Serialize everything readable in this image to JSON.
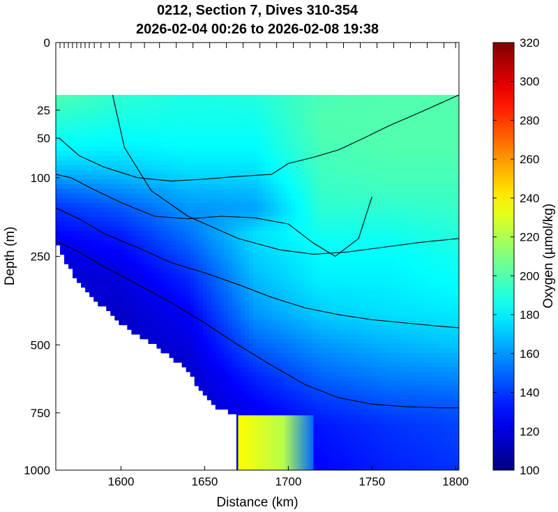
{
  "chart_data": {
    "type": "heatmap",
    "title_line1": "0212, Section 7, Dives 310-354",
    "title_line2": "2026-02-04 00:26 to 2026-02-08 19:38",
    "xlabel": "Distance (km)",
    "ylabel": "Depth (m)",
    "colorbar_label": "Oxygen (µmol/kg)",
    "x_range": [
      1561,
      1802
    ],
    "x_ticks": [
      1600,
      1650,
      1700,
      1750,
      1800
    ],
    "y_scale": "sqrt",
    "y_range": [
      0,
      1000
    ],
    "y_ticks": [
      0,
      25,
      50,
      100,
      250,
      500,
      750,
      1000
    ],
    "c_range": [
      100,
      320
    ],
    "c_ticks": [
      100,
      120,
      140,
      160,
      180,
      200,
      220,
      240,
      260,
      280,
      300,
      320
    ],
    "colormap": "jet",
    "data_top_depth": 15,
    "dive_ticks_km": [
      1561,
      1563.5,
      1566,
      1568.5,
      1571,
      1573.5,
      1576,
      1578.5,
      1581,
      1584,
      1588,
      1593,
      1599,
      1606,
      1614,
      1623,
      1633,
      1643,
      1653,
      1663,
      1673,
      1683,
      1693,
      1703,
      1713,
      1723,
      1733,
      1743,
      1753,
      1763,
      1773,
      1783,
      1793,
      1800
    ],
    "bottom_profile": {
      "x": [
        1561,
        1567,
        1572,
        1580,
        1590,
        1600,
        1612,
        1625,
        1638,
        1648,
        1658,
        1670,
        1670,
        1802
      ],
      "depth": [
        210,
        265,
        300,
        340,
        385,
        430,
        475,
        520,
        575,
        660,
        730,
        760,
        1000,
        1000
      ]
    },
    "deep_anomaly": {
      "x_start": 1670,
      "x_end": 1715,
      "depth_top": 760,
      "depth_bottom": 1000
    },
    "field_profiles": [
      {
        "x": 1561,
        "depth": [
          15,
          30,
          60,
          90,
          120,
          150,
          200,
          250,
          300,
          400,
          500,
          600,
          700,
          800,
          1000
        ],
        "oxygen": [
          200,
          192,
          182,
          168,
          150,
          138,
          128,
          120,
          118,
          115,
          113,
          112,
          112,
          112,
          112
        ]
      },
      {
        "x": 1600,
        "depth": [
          15,
          30,
          60,
          90,
          120,
          150,
          200,
          250,
          300,
          400,
          500,
          600,
          700,
          800,
          1000
        ],
        "oxygen": [
          192,
          188,
          180,
          170,
          158,
          146,
          134,
          126,
          120,
          116,
          114,
          112,
          112,
          112,
          112
        ]
      },
      {
        "x": 1640,
        "depth": [
          15,
          30,
          60,
          90,
          120,
          150,
          200,
          250,
          300,
          400,
          500,
          600,
          700,
          800,
          1000
        ],
        "oxygen": [
          188,
          186,
          182,
          176,
          166,
          160,
          152,
          144,
          136,
          126,
          120,
          116,
          114,
          112,
          112
        ]
      },
      {
        "x": 1680,
        "depth": [
          15,
          30,
          60,
          90,
          120,
          150,
          200,
          250,
          300,
          400,
          500,
          600,
          700,
          800,
          1000
        ],
        "oxygen": [
          190,
          186,
          182,
          176,
          168,
          162,
          176,
          172,
          168,
          160,
          148,
          136,
          128,
          122,
          120
        ]
      },
      {
        "x": 1720,
        "depth": [
          15,
          30,
          60,
          90,
          120,
          150,
          200,
          250,
          300,
          400,
          500,
          600,
          700,
          800,
          1000
        ],
        "oxygen": [
          198,
          200,
          198,
          196,
          194,
          192,
          186,
          182,
          180,
          172,
          160,
          150,
          140,
          132,
          128
        ]
      },
      {
        "x": 1760,
        "depth": [
          15,
          30,
          60,
          90,
          120,
          150,
          200,
          250,
          300,
          400,
          500,
          600,
          700,
          800,
          1000
        ],
        "oxygen": [
          200,
          200,
          200,
          198,
          196,
          192,
          186,
          182,
          180,
          176,
          166,
          156,
          146,
          138,
          134
        ]
      },
      {
        "x": 1802,
        "depth": [
          15,
          30,
          60,
          90,
          120,
          150,
          200,
          250,
          300,
          400,
          500,
          600,
          700,
          800,
          1000
        ],
        "oxygen": [
          200,
          200,
          200,
          198,
          196,
          194,
          190,
          186,
          184,
          178,
          170,
          158,
          148,
          142,
          138
        ]
      }
    ],
    "contour_lines": [
      {
        "x": [
          1595,
          1602,
          1618,
          1640,
          1670,
          1695,
          1715,
          1735,
          1755,
          1780,
          1802
        ],
        "depth": [
          15,
          60,
          120,
          165,
          210,
          235,
          245,
          240,
          230,
          218,
          210
        ]
      },
      {
        "x": [
          1563,
          1575,
          1590,
          1610,
          1630,
          1650,
          1670,
          1690,
          1700,
          1715,
          1730,
          1745,
          1760,
          1780,
          1802
        ],
        "depth": [
          50,
          70,
          85,
          100,
          105,
          102,
          98,
          95,
          80,
          72,
          63,
          50,
          38,
          26,
          15
        ]
      },
      {
        "x": [
          1561,
          1570,
          1585,
          1600,
          1620,
          1640,
          1660,
          1680,
          1700,
          1715,
          1728,
          1742,
          1750
        ],
        "depth": [
          95,
          100,
          120,
          140,
          165,
          170,
          165,
          168,
          180,
          220,
          250,
          210,
          130
        ]
      },
      {
        "x": [
          1561,
          1575,
          1590,
          1610,
          1630,
          1650,
          1670,
          1690,
          1710,
          1730,
          1750,
          1770,
          1790,
          1802
        ],
        "depth": [
          150,
          170,
          200,
          230,
          265,
          290,
          320,
          355,
          385,
          405,
          420,
          430,
          440,
          445
        ]
      },
      {
        "x": [
          1561,
          1575,
          1590,
          1610,
          1630,
          1650,
          1670,
          1690,
          1710,
          1730,
          1750,
          1770,
          1790,
          1802
        ],
        "depth": [
          215,
          240,
          275,
          320,
          370,
          430,
          500,
          570,
          640,
          690,
          715,
          725,
          730,
          730
        ]
      }
    ]
  }
}
